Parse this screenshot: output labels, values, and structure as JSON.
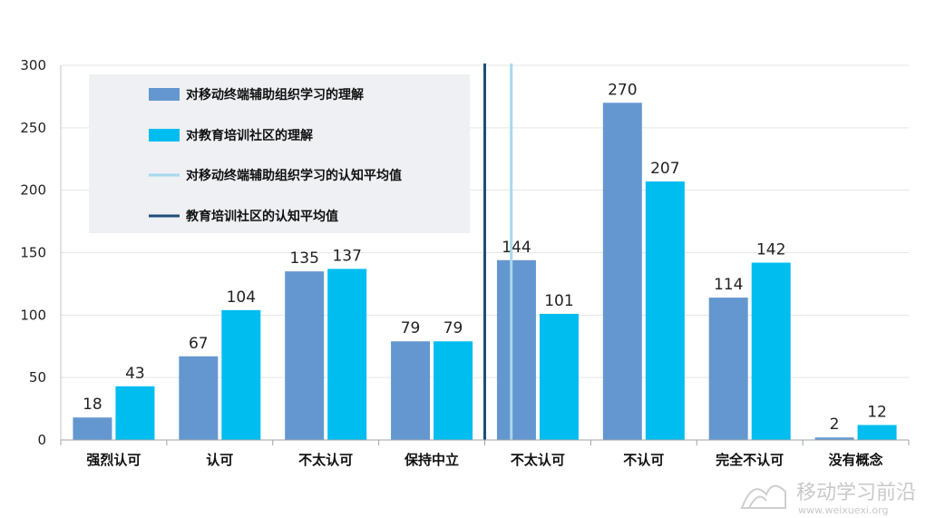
{
  "chart_data": {
    "type": "bar",
    "categories": [
      "强烈认可",
      "认可",
      "不太认可",
      "保持中立",
      "不太认可",
      "不认可",
      "完全不认可",
      "没有概念"
    ],
    "series": [
      {
        "name": "对移动终端辅助组织学习的理解",
        "color": "#6497cf",
        "values": [
          18,
          67,
          135,
          79,
          144,
          270,
          114,
          2
        ]
      },
      {
        "name": "对教育培训社区的理解",
        "color": "#00bdf0",
        "values": [
          43,
          104,
          137,
          79,
          101,
          207,
          142,
          12
        ]
      }
    ],
    "reference_lines": [
      {
        "name": "对移动终端辅助组织学习的认知平均值",
        "color": "#a8d8ee",
        "x_position": 4.25
      },
      {
        "name": "教育培训社区的认知平均值",
        "color": "#1f4e79",
        "x_position": 4.0
      }
    ],
    "y_ticks": [
      0,
      50,
      100,
      150,
      200,
      250,
      300
    ],
    "ylim": [
      0,
      300
    ],
    "grid": true,
    "legend_position": "top-left"
  },
  "watermark": {
    "text": "移动学习前沿",
    "url": "www.weixuexi.org"
  }
}
